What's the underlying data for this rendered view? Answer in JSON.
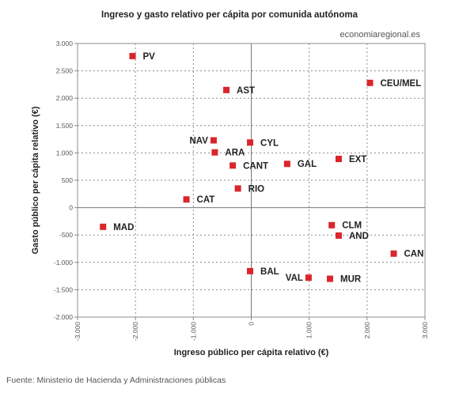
{
  "chart_data": {
    "type": "scatter",
    "title": "Ingreso y gasto relativo per cápita por comunida autónoma",
    "watermark": "economiaregional.es",
    "source": "Fuente: Ministerio de Hacienda y Administraciones públicas",
    "xlabel": "Ingreso público per cápita relativo (€)",
    "ylabel": "Gasto público per cápita relativo (€)",
    "xlim": [
      -3000,
      3000
    ],
    "ylim": [
      -2000,
      3000
    ],
    "x_ticks": [
      -3000,
      -2000,
      -1000,
      0,
      1000,
      2000,
      3000
    ],
    "x_tick_labels": [
      "-3.000",
      "-2.000",
      "-1.000",
      "0",
      "1.000",
      "2.000",
      "3.000"
    ],
    "y_ticks": [
      3000,
      2500,
      2000,
      1500,
      1000,
      500,
      0,
      -500,
      -1000,
      -1500,
      -2000
    ],
    "y_tick_labels": [
      "3.000",
      "2.500",
      "2.000",
      "1.500",
      "1.000",
      "500",
      "0",
      "-500",
      "-1.000",
      "-1.500",
      "-2.000"
    ],
    "grid": true,
    "marker_color": "#d9262b",
    "points": [
      {
        "label": "PV",
        "x": -2050,
        "y": 2770,
        "label_side": "right"
      },
      {
        "label": "AST",
        "x": -430,
        "y": 2150,
        "label_side": "right"
      },
      {
        "label": "CEU/MEL",
        "x": 2050,
        "y": 2280,
        "label_side": "right"
      },
      {
        "label": "NAV",
        "x": -650,
        "y": 1230,
        "label_side": "left"
      },
      {
        "label": "CYL",
        "x": -20,
        "y": 1190,
        "label_side": "right"
      },
      {
        "label": "ARA",
        "x": -630,
        "y": 1010,
        "label_side": "right"
      },
      {
        "label": "GAL",
        "x": 620,
        "y": 800,
        "label_side": "right"
      },
      {
        "label": "EXT",
        "x": 1510,
        "y": 890,
        "label_side": "right"
      },
      {
        "label": "CANT",
        "x": -320,
        "y": 770,
        "label_side": "right"
      },
      {
        "label": "RIO",
        "x": -230,
        "y": 350,
        "label_side": "right"
      },
      {
        "label": "CAT",
        "x": -1120,
        "y": 150,
        "label_side": "right"
      },
      {
        "label": "MAD",
        "x": -2560,
        "y": -350,
        "label_side": "right"
      },
      {
        "label": "CLM",
        "x": 1390,
        "y": -320,
        "label_side": "right"
      },
      {
        "label": "AND",
        "x": 1510,
        "y": -510,
        "label_side": "right"
      },
      {
        "label": "CAN",
        "x": 2460,
        "y": -840,
        "label_side": "right"
      },
      {
        "label": "BAL",
        "x": -20,
        "y": -1160,
        "label_side": "right"
      },
      {
        "label": "VAL",
        "x": 990,
        "y": -1280,
        "label_side": "left"
      },
      {
        "label": "MUR",
        "x": 1360,
        "y": -1300,
        "label_side": "right"
      }
    ]
  }
}
